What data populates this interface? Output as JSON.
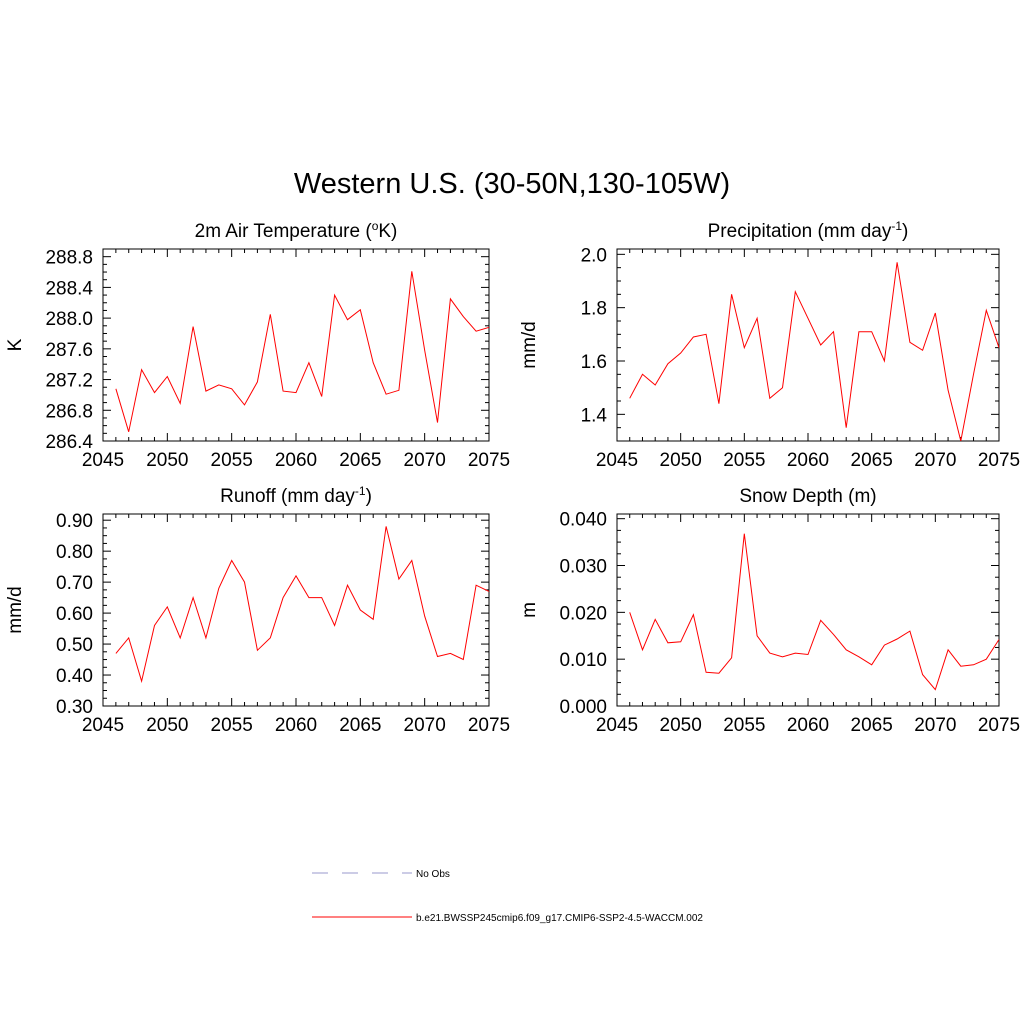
{
  "title": "Western U.S. (30-50N,130-105W)",
  "chart_data": [
    {
      "type": "line",
      "title": "2m Air Temperature (",
      "title_sup": "o",
      "title_end": "K)",
      "ylabel": "K",
      "xlim": [
        2045,
        2075
      ],
      "ylim": [
        286.4,
        288.9
      ],
      "xticks": [
        "2045",
        "2050",
        "2055",
        "2060",
        "2065",
        "2070",
        "2075"
      ],
      "yticks": [
        "286.4",
        "286.8",
        "287.2",
        "287.6",
        "288.0",
        "288.4",
        "288.8"
      ],
      "x": [
        2046,
        2047,
        2048,
        2049,
        2050,
        2051,
        2052,
        2053,
        2054,
        2055,
        2056,
        2057,
        2058,
        2059,
        2060,
        2061,
        2062,
        2063,
        2064,
        2065,
        2066,
        2067,
        2068,
        2069,
        2070,
        2071,
        2072,
        2073,
        2074,
        2075
      ],
      "values": [
        287.08,
        286.52,
        287.33,
        287.03,
        287.24,
        286.89,
        287.89,
        287.05,
        287.13,
        287.08,
        286.87,
        287.17,
        288.05,
        287.05,
        287.03,
        287.42,
        286.98,
        288.3,
        287.98,
        288.11,
        287.42,
        287.01,
        287.06,
        288.61,
        287.58,
        286.64,
        288.25,
        288.02,
        287.83,
        287.88
      ]
    },
    {
      "type": "line",
      "title": "Precipitation (mm day",
      "title_sup": "-1",
      "title_end": ")",
      "ylabel": "mm/d",
      "xlim": [
        2045,
        2075
      ],
      "ylim": [
        1.3,
        2.02
      ],
      "xticks": [
        "2045",
        "2050",
        "2055",
        "2060",
        "2065",
        "2070",
        "2075"
      ],
      "yticks": [
        "1.4",
        "1.6",
        "1.8",
        "2.0"
      ],
      "x": [
        2046,
        2047,
        2048,
        2049,
        2050,
        2051,
        2052,
        2053,
        2054,
        2055,
        2056,
        2057,
        2058,
        2059,
        2060,
        2061,
        2062,
        2063,
        2064,
        2065,
        2066,
        2067,
        2068,
        2069,
        2070,
        2071,
        2072,
        2073,
        2074,
        2075
      ],
      "values": [
        1.46,
        1.55,
        1.51,
        1.59,
        1.63,
        1.69,
        1.7,
        1.44,
        1.85,
        1.65,
        1.76,
        1.46,
        1.5,
        1.86,
        1.76,
        1.66,
        1.71,
        1.35,
        1.71,
        1.71,
        1.6,
        1.97,
        1.67,
        1.64,
        1.78,
        1.49,
        1.3,
        1.55,
        1.79,
        1.65
      ]
    },
    {
      "type": "line",
      "title": "Runoff (mm day",
      "title_sup": "-1",
      "title_end": ")",
      "ylabel": "mm/d",
      "xlim": [
        2045,
        2075
      ],
      "ylim": [
        0.3,
        0.92
      ],
      "xticks": [
        "2045",
        "2050",
        "2055",
        "2060",
        "2065",
        "2070",
        "2075"
      ],
      "yticks": [
        "0.30",
        "0.40",
        "0.50",
        "0.60",
        "0.70",
        "0.80",
        "0.90"
      ],
      "x": [
        2046,
        2047,
        2048,
        2049,
        2050,
        2051,
        2052,
        2053,
        2054,
        2055,
        2056,
        2057,
        2058,
        2059,
        2060,
        2061,
        2062,
        2063,
        2064,
        2065,
        2066,
        2067,
        2068,
        2069,
        2070,
        2071,
        2072,
        2073,
        2074,
        2075
      ],
      "values": [
        0.47,
        0.52,
        0.38,
        0.56,
        0.62,
        0.52,
        0.65,
        0.52,
        0.68,
        0.77,
        0.7,
        0.48,
        0.52,
        0.65,
        0.72,
        0.65,
        0.65,
        0.56,
        0.69,
        0.61,
        0.58,
        0.88,
        0.71,
        0.77,
        0.59,
        0.46,
        0.47,
        0.45,
        0.69,
        0.67
      ]
    },
    {
      "type": "line",
      "title": "Snow Depth (m)",
      "title_sup": "",
      "title_end": "",
      "ylabel": "m",
      "xlim": [
        2045,
        2075
      ],
      "ylim": [
        0.0,
        0.041
      ],
      "xticks": [
        "2045",
        "2050",
        "2055",
        "2060",
        "2065",
        "2070",
        "2075"
      ],
      "yticks": [
        "0.000",
        "0.010",
        "0.020",
        "0.030",
        "0.040"
      ],
      "x": [
        2046,
        2047,
        2048,
        2049,
        2050,
        2051,
        2052,
        2053,
        2054,
        2055,
        2056,
        2057,
        2058,
        2059,
        2060,
        2061,
        2062,
        2063,
        2064,
        2065,
        2066,
        2067,
        2068,
        2069,
        2070,
        2071,
        2072,
        2073,
        2074,
        2075
      ],
      "values": [
        0.02,
        0.012,
        0.0185,
        0.0135,
        0.0137,
        0.0195,
        0.0072,
        0.007,
        0.0103,
        0.0368,
        0.015,
        0.0113,
        0.0105,
        0.0113,
        0.011,
        0.0183,
        0.0153,
        0.012,
        0.0105,
        0.0088,
        0.013,
        0.0143,
        0.016,
        0.0067,
        0.0035,
        0.012,
        0.0085,
        0.0088,
        0.01,
        0.0142
      ]
    }
  ],
  "legend": [
    {
      "label": "No Obs",
      "color": "#9999cc",
      "dash": true
    },
    {
      "label": "b.e21.BWSSP245cmip6.f09_g17.CMIP6-SSP2-4.5-WACCM.002",
      "color": "#ff0000",
      "dash": false
    }
  ],
  "colors": {
    "series": "#ff0000",
    "axis": "#000000"
  }
}
